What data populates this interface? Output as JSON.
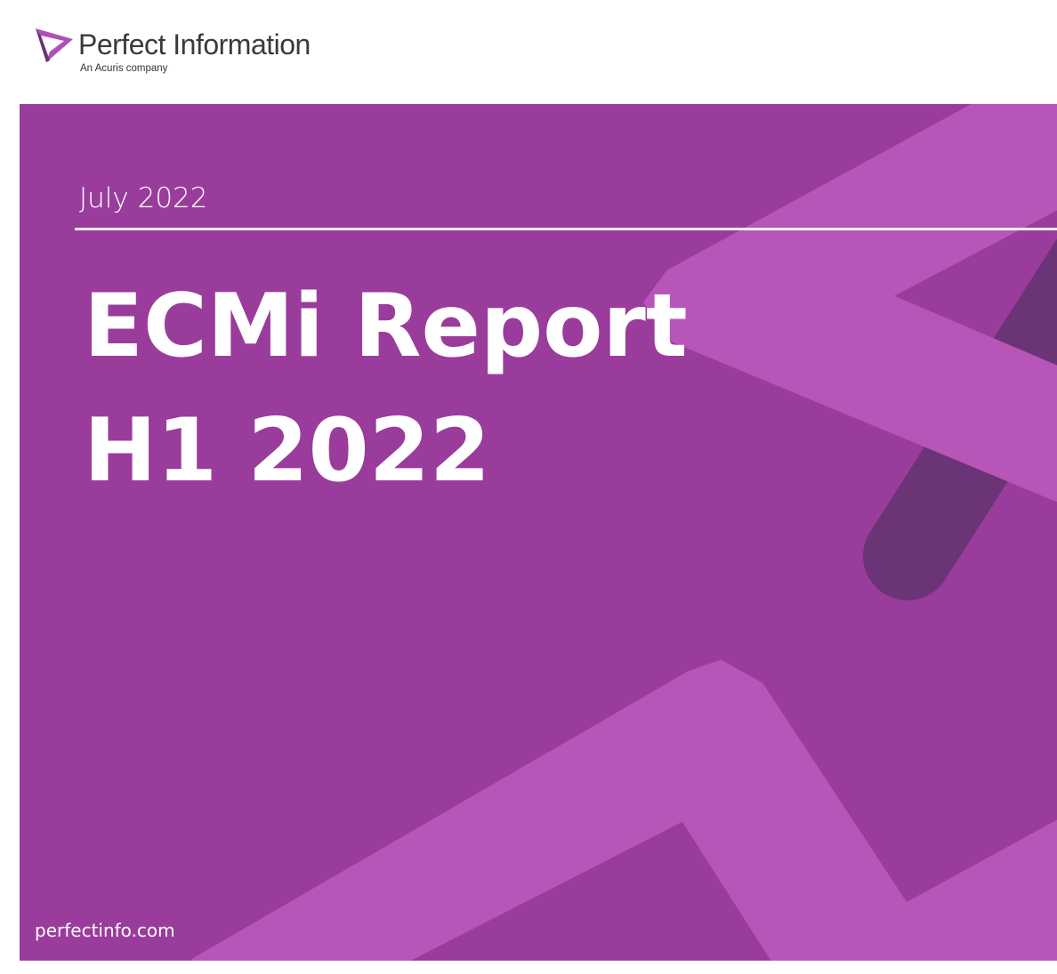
{
  "brand": {
    "name": "Perfect Information",
    "tagline": "An Acuris company"
  },
  "cover": {
    "date": "July 2022",
    "title_line1": "ECMi Report",
    "title_line2": "H1 2022",
    "website": "perfectinfo.com"
  },
  "colors": {
    "background": "#9a3c9c",
    "accent_light": "#b755b9",
    "accent_dark": "#6b3477",
    "logo": "#b04fb8"
  }
}
